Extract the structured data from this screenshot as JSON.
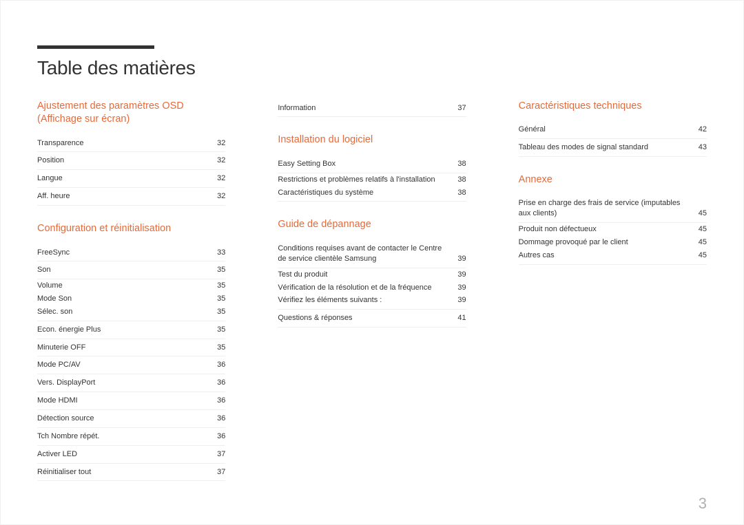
{
  "page_number": "3",
  "title": "Table des matières",
  "colors": {
    "accent": "#e56a3a",
    "text": "#333333",
    "rule_border": "#eeeeee",
    "page_num": "#b0b0b0",
    "page_border": "#f0f0f0"
  },
  "col1": {
    "sections": [
      {
        "heading": "Ajustement des paramètres OSD (Affichage sur écran)",
        "entries": [
          {
            "label": "Transparence",
            "page": "32"
          },
          {
            "label": "Position",
            "page": "32"
          },
          {
            "label": "Langue",
            "page": "32"
          },
          {
            "label": "Aff. heure",
            "page": "32"
          }
        ]
      },
      {
        "heading": "Configuration et réinitialisation",
        "entries": [
          {
            "label": "FreeSync",
            "page": "33"
          },
          {
            "label": "Son",
            "page": "35"
          },
          {
            "label": "Volume",
            "page": "35",
            "sub": true
          },
          {
            "label": "Mode Son",
            "page": "35",
            "sub": true
          },
          {
            "label": "Sélec. son",
            "page": "35",
            "sub": true,
            "last_sub": true
          },
          {
            "label": "Econ. énergie Plus",
            "page": "35"
          },
          {
            "label": "Minuterie OFF",
            "page": "35"
          },
          {
            "label": "Mode PC/AV",
            "page": "36"
          },
          {
            "label": "Vers. DisplayPort",
            "page": "36"
          },
          {
            "label": "Mode HDMI",
            "page": "36"
          },
          {
            "label": "Détection source",
            "page": "36"
          },
          {
            "label": "Tch Nombre répét.",
            "page": "36"
          },
          {
            "label": "Activer LED",
            "page": "37"
          },
          {
            "label": "Réinitialiser tout",
            "page": "37"
          }
        ]
      }
    ]
  },
  "col2": {
    "sections": [
      {
        "heading": "",
        "entries": [
          {
            "label": "Information",
            "page": "37"
          }
        ]
      },
      {
        "heading": "Installation du logiciel",
        "entries": [
          {
            "label": "Easy Setting Box",
            "page": "38"
          },
          {
            "label": "Restrictions et problèmes relatifs à l'installation",
            "page": "38",
            "sub": true
          },
          {
            "label": "Caractéristiques du système",
            "page": "38",
            "sub": true,
            "last_sub": true
          }
        ]
      },
      {
        "heading": "Guide de dépannage",
        "entries": [
          {
            "label": "Conditions requises avant de contacter le Centre de service clientèle Samsung",
            "page": "39"
          },
          {
            "label": "Test du produit",
            "page": "39",
            "sub": true
          },
          {
            "label": "Vérification de la résolution et de la fréquence",
            "page": "39",
            "sub": true
          },
          {
            "label": "Vérifiez les éléments suivants :",
            "page": "39",
            "sub": true,
            "last_sub": true
          },
          {
            "label": "Questions & réponses",
            "page": "41"
          }
        ]
      }
    ]
  },
  "col3": {
    "sections": [
      {
        "heading": "Caractéristiques techniques",
        "entries": [
          {
            "label": "Général",
            "page": "42"
          },
          {
            "label": "Tableau des modes de signal standard",
            "page": "43"
          }
        ]
      },
      {
        "heading": "Annexe",
        "entries": [
          {
            "label": "Prise en charge des frais de service (imputables aux clients)",
            "page": "45"
          },
          {
            "label": "Produit non défectueux",
            "page": "45",
            "sub": true
          },
          {
            "label": "Dommage provoqué par le client",
            "page": "45",
            "sub": true
          },
          {
            "label": "Autres cas",
            "page": "45",
            "sub": true,
            "last_sub": true
          }
        ]
      }
    ]
  }
}
